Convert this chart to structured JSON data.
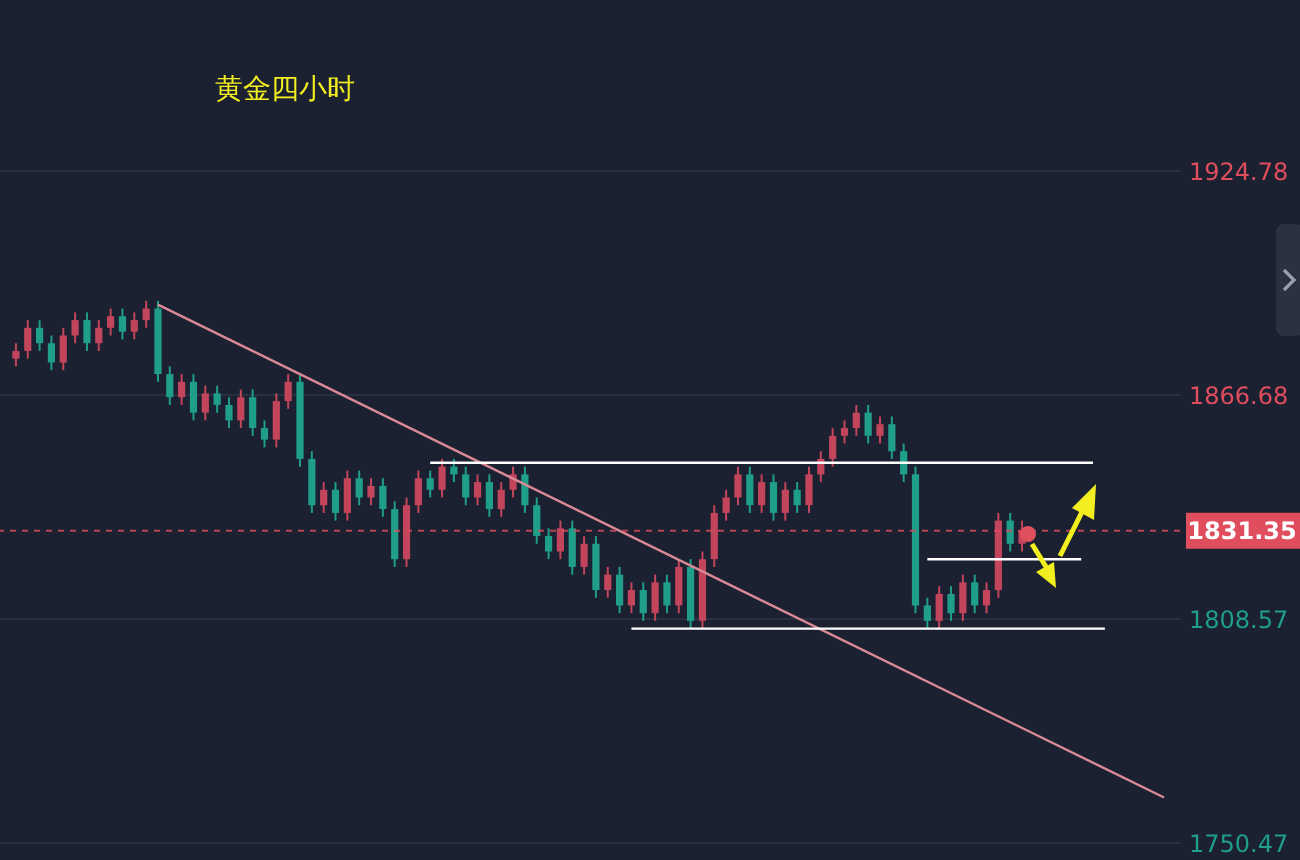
{
  "chart_data": {
    "type": "candlestick",
    "title": "黄金四小时",
    "tick_labels": "y",
    "grid": "y",
    "categories": [
      null,
      null,
      null,
      null,
      null,
      null,
      null,
      null,
      null,
      null,
      null,
      null,
      null,
      null,
      null,
      null,
      null,
      null,
      null,
      null,
      null,
      null,
      null,
      null,
      null,
      null,
      null,
      null,
      null,
      null,
      null,
      null,
      null,
      null,
      null,
      null,
      null,
      null,
      null,
      null,
      null,
      null,
      null,
      null,
      null,
      null,
      null,
      null,
      null,
      null,
      null,
      null,
      null,
      null,
      null,
      null,
      null,
      null,
      null,
      null,
      null,
      null,
      null,
      null,
      null,
      null,
      null,
      null,
      null,
      null,
      null,
      null,
      null,
      null,
      null,
      null,
      null,
      null,
      null,
      null,
      null,
      null,
      null,
      null,
      null,
      null,
      null,
      null,
      null,
      null,
      null,
      null,
      null,
      null,
      null,
      null,
      null,
      null
    ],
    "ylim": [
      1746,
      1969
    ],
    "yticks": [
      1750.47,
      1808.57,
      1866.68,
      1924.78
    ],
    "ref_lines": [
      {
        "axis": "y",
        "value": 1831.35,
        "label": "1831.35",
        "color": "#e04e5e",
        "line_style": "dashed"
      }
    ],
    "series": [
      {
        "type": "candlestick",
        "colors": [
          "#c2455c",
          "#c2455c",
          "#1f9e8a",
          "#1f9e8a",
          "#c2455c",
          "#c2455c",
          "#1f9e8a",
          "#c2455c",
          "#c2455c",
          "#1f9e8a",
          "#c2455c",
          "#c2455c",
          "#1f9e8a",
          "#1f9e8a",
          "#c2455c",
          "#1f9e8a",
          "#c2455c",
          "#1f9e8a",
          "#1f9e8a",
          "#c2455c",
          "#1f9e8a",
          "#1f9e8a",
          "#c2455c",
          "#c2455c",
          "#1f9e8a",
          "#1f9e8a",
          "#c2455c",
          "#1f9e8a",
          "#c2455c",
          "#1f9e8a",
          "#c2455c",
          "#1f9e8a",
          "#1f9e8a",
          "#c2455c",
          "#c2455c",
          "#1f9e8a",
          "#c2455c",
          "#1f9e8a",
          "#1f9e8a",
          "#c2455c",
          "#1f9e8a",
          "#c2455c",
          "#c2455c",
          "#1f9e8a",
          "#1f9e8a",
          "#1f9e8a",
          "#c2455c",
          "#1f9e8a",
          "#c2455c",
          "#1f9e8a",
          "#c2455c",
          "#1f9e8a",
          "#c2455c",
          "#1f9e8a",
          "#c2455c",
          "#1f9e8a",
          "#c2455c",
          "#1f9e8a",
          "#c2455c",
          "#c2455c",
          "#c2455c",
          "#c2455c",
          "#1f9e8a",
          "#c2455c",
          "#1f9e8a",
          "#c2455c",
          "#1f9e8a",
          "#c2455c",
          "#c2455c",
          "#c2455c",
          "#c2455c",
          "#c2455c",
          "#1f9e8a",
          "#c2455c",
          "#1f9e8a",
          "#1f9e8a",
          "#1f9e8a",
          "#1f9e8a",
          "#c2455c",
          "#1f9e8a",
          "#c2455c",
          "#1f9e8a",
          "#c2455c",
          "#c2455c",
          "#1f9e8a",
          "#c2455c",
          null,
          null,
          null,
          null,
          null,
          null,
          null,
          null,
          null,
          null,
          null,
          null
        ],
        "ohlc": [
          [
            1876,
            1880,
            1874,
            1878
          ],
          [
            1878,
            1886,
            1876,
            1884
          ],
          [
            1884,
            1886,
            1878,
            1880
          ],
          [
            1880,
            1882,
            1873,
            1875
          ],
          [
            1875,
            1884,
            1873,
            1882
          ],
          [
            1882,
            1888,
            1880,
            1886
          ],
          [
            1886,
            1888,
            1878,
            1880
          ],
          [
            1880,
            1886,
            1878,
            1884
          ],
          [
            1884,
            1889,
            1882,
            1887
          ],
          [
            1887,
            1889,
            1881,
            1883
          ],
          [
            1883,
            1888,
            1881,
            1886
          ],
          [
            1886,
            1891,
            1884,
            1889
          ],
          [
            1889,
            1891,
            1870,
            1872
          ],
          [
            1872,
            1874,
            1864,
            1866
          ],
          [
            1866,
            1872,
            1864,
            1870
          ],
          [
            1870,
            1872,
            1860,
            1862
          ],
          [
            1862,
            1869,
            1860,
            1867
          ],
          [
            1867,
            1869,
            1862,
            1864
          ],
          [
            1864,
            1866,
            1858,
            1860
          ],
          [
            1860,
            1868,
            1858,
            1866
          ],
          [
            1866,
            1868,
            1856,
            1858
          ],
          [
            1858,
            1860,
            1853,
            1855
          ],
          [
            1855,
            1867,
            1853,
            1865
          ],
          [
            1865,
            1872,
            1863,
            1870
          ],
          [
            1870,
            1872,
            1848,
            1850
          ],
          [
            1850,
            1852,
            1836,
            1838
          ],
          [
            1838,
            1844,
            1836,
            1842
          ],
          [
            1842,
            1844,
            1834,
            1836
          ],
          [
            1836,
            1847,
            1834,
            1845
          ],
          [
            1845,
            1847,
            1838,
            1840
          ],
          [
            1840,
            1845,
            1838,
            1843
          ],
          [
            1843,
            1845,
            1835,
            1837
          ],
          [
            1837,
            1839,
            1822,
            1824
          ],
          [
            1824,
            1840,
            1822,
            1838
          ],
          [
            1838,
            1847,
            1836,
            1845
          ],
          [
            1845,
            1847,
            1840,
            1842
          ],
          [
            1842,
            1850,
            1840,
            1848
          ],
          [
            1848,
            1850,
            1844,
            1846
          ],
          [
            1846,
            1848,
            1838,
            1840
          ],
          [
            1840,
            1846,
            1838,
            1844
          ],
          [
            1844,
            1846,
            1835,
            1837
          ],
          [
            1837,
            1844,
            1835,
            1842
          ],
          [
            1842,
            1848,
            1840,
            1846
          ],
          [
            1846,
            1848,
            1836,
            1838
          ],
          [
            1838,
            1840,
            1828,
            1830
          ],
          [
            1830,
            1832,
            1824,
            1826
          ],
          [
            1826,
            1834,
            1824,
            1832
          ],
          [
            1832,
            1834,
            1820,
            1822
          ],
          [
            1822,
            1830,
            1820,
            1828
          ],
          [
            1828,
            1830,
            1814,
            1816
          ],
          [
            1816,
            1822,
            1814,
            1820
          ],
          [
            1820,
            1822,
            1810,
            1812
          ],
          [
            1812,
            1818,
            1810,
            1816
          ],
          [
            1816,
            1818,
            1808,
            1810
          ],
          [
            1810,
            1820,
            1808,
            1818
          ],
          [
            1818,
            1820,
            1810,
            1812
          ],
          [
            1812,
            1824,
            1810,
            1822
          ],
          [
            1822,
            1824,
            1806,
            1808
          ],
          [
            1808,
            1826,
            1806,
            1824
          ],
          [
            1824,
            1838,
            1822,
            1836
          ],
          [
            1836,
            1842,
            1834,
            1840
          ],
          [
            1840,
            1848,
            1838,
            1846
          ],
          [
            1846,
            1848,
            1836,
            1838
          ],
          [
            1838,
            1846,
            1836,
            1844
          ],
          [
            1844,
            1846,
            1834,
            1836
          ],
          [
            1836,
            1844,
            1834,
            1842
          ],
          [
            1842,
            1844,
            1836,
            1838
          ],
          [
            1838,
            1848,
            1836,
            1846
          ],
          [
            1846,
            1852,
            1844,
            1850
          ],
          [
            1850,
            1858,
            1848,
            1856
          ],
          [
            1856,
            1860,
            1854,
            1858
          ],
          [
            1858,
            1864,
            1856,
            1862
          ],
          [
            1862,
            1864,
            1854,
            1856
          ],
          [
            1856,
            1861,
            1854,
            1859
          ],
          [
            1859,
            1861,
            1850,
            1852
          ],
          [
            1852,
            1854,
            1844,
            1846
          ],
          [
            1846,
            1848,
            1810,
            1812
          ],
          [
            1812,
            1814,
            1806,
            1808
          ],
          [
            1808,
            1817,
            1806,
            1815
          ],
          [
            1815,
            1817,
            1808,
            1810
          ],
          [
            1810,
            1820,
            1808,
            1818
          ],
          [
            1818,
            1820,
            1810,
            1812
          ],
          [
            1812,
            1818,
            1810,
            1816
          ],
          [
            1816,
            1836,
            1814,
            1834
          ],
          [
            1834,
            1836,
            1826,
            1828
          ],
          [
            1828,
            1834,
            1826,
            1831.35
          ],
          null,
          null,
          null,
          null,
          null,
          null,
          null,
          null,
          null,
          null,
          null,
          null
        ]
      },
      {
        "type": "line",
        "color": "#d98a96",
        "values": [
          null,
          null,
          null,
          null,
          null,
          null,
          null,
          null,
          null,
          null,
          null,
          null,
          1890,
          null,
          null,
          null,
          null,
          null,
          null,
          null,
          null,
          null,
          null,
          null,
          null,
          null,
          null,
          null,
          null,
          null,
          null,
          null,
          null,
          null,
          null,
          null,
          null,
          null,
          null,
          null,
          null,
          null,
          null,
          null,
          null,
          null,
          null,
          null,
          null,
          null,
          null,
          null,
          null,
          null,
          null,
          null,
          null,
          null,
          null,
          null,
          null,
          null,
          null,
          null,
          null,
          null,
          null,
          null,
          null,
          null,
          null,
          null,
          null,
          null,
          null,
          null,
          null,
          null,
          null,
          null,
          null,
          null,
          null,
          null,
          null,
          null,
          null,
          null,
          null,
          null,
          null,
          null,
          null,
          null,
          null,
          null,
          null,
          1762.2
        ]
      },
      {
        "type": "line",
        "color": "#ffffff",
        "values": [
          null,
          null,
          null,
          null,
          null,
          null,
          null,
          null,
          null,
          null,
          null,
          null,
          null,
          null,
          null,
          null,
          null,
          null,
          null,
          null,
          null,
          null,
          null,
          null,
          null,
          null,
          null,
          null,
          null,
          null,
          null,
          null,
          null,
          null,
          null,
          1849,
          null,
          null,
          null,
          null,
          null,
          null,
          null,
          null,
          null,
          null,
          null,
          null,
          null,
          null,
          null,
          null,
          null,
          null,
          null,
          null,
          null,
          null,
          null,
          null,
          null,
          null,
          null,
          null,
          null,
          null,
          null,
          null,
          null,
          null,
          null,
          null,
          null,
          null,
          null,
          null,
          null,
          null,
          null,
          null,
          null,
          null,
          null,
          null,
          null,
          null,
          null,
          null,
          null,
          null,
          null,
          1849,
          null,
          null,
          null,
          null,
          null,
          null
        ]
      },
      {
        "type": "line",
        "color": "#ffffff",
        "values": [
          null,
          null,
          null,
          null,
          null,
          null,
          null,
          null,
          null,
          null,
          null,
          null,
          null,
          null,
          null,
          null,
          null,
          null,
          null,
          null,
          null,
          null,
          null,
          null,
          null,
          null,
          null,
          null,
          null,
          null,
          null,
          null,
          null,
          null,
          null,
          null,
          null,
          null,
          null,
          null,
          null,
          null,
          null,
          null,
          null,
          null,
          null,
          null,
          null,
          null,
          null,
          null,
          1806,
          null,
          null,
          null,
          null,
          null,
          null,
          null,
          null,
          null,
          null,
          null,
          null,
          null,
          null,
          null,
          null,
          null,
          null,
          null,
          null,
          null,
          null,
          null,
          null,
          null,
          null,
          null,
          null,
          null,
          null,
          null,
          null,
          null,
          null,
          null,
          null,
          null,
          null,
          null,
          1806,
          null,
          null,
          null,
          null,
          null
        ]
      },
      {
        "type": "line",
        "color": "#ffffff",
        "values": [
          null,
          null,
          null,
          null,
          null,
          null,
          null,
          null,
          null,
          null,
          null,
          null,
          null,
          null,
          null,
          null,
          null,
          null,
          null,
          null,
          null,
          null,
          null,
          null,
          null,
          null,
          null,
          null,
          null,
          null,
          null,
          null,
          null,
          null,
          null,
          null,
          null,
          null,
          null,
          null,
          null,
          null,
          null,
          null,
          null,
          null,
          null,
          null,
          null,
          null,
          null,
          null,
          null,
          null,
          null,
          null,
          null,
          null,
          null,
          null,
          null,
          null,
          null,
          null,
          null,
          null,
          null,
          null,
          null,
          null,
          null,
          null,
          null,
          null,
          null,
          null,
          null,
          1824,
          null,
          null,
          null,
          null,
          null,
          null,
          null,
          null,
          null,
          null,
          null,
          null,
          1824,
          null,
          null,
          null,
          null,
          null,
          null,
          null
        ]
      }
    ]
  }
}
